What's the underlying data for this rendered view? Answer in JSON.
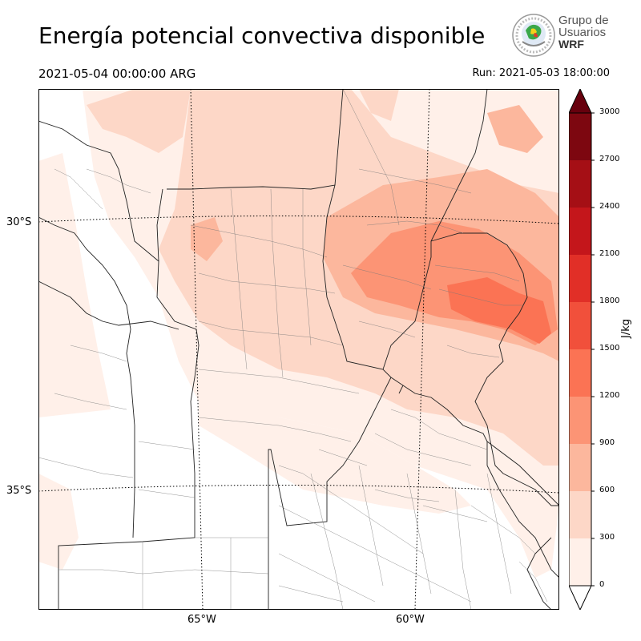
{
  "header": {
    "title": "Energía potencial convectiva disponible",
    "valid_time": "2021-05-04 00:00:00 ARG",
    "run_time": "Run: 2021-05-03 18:00:00"
  },
  "logo": {
    "line1": "Grupo de",
    "line2": "Usuarios",
    "line3": "WRF"
  },
  "map": {
    "lat_labels": [
      "30°S",
      "35°S"
    ],
    "lon_labels": [
      "65°W",
      "60°W"
    ]
  },
  "colorbar": {
    "unit": "J/kg",
    "ticks": [
      "0",
      "300",
      "600",
      "900",
      "1200",
      "1500",
      "1800",
      "2100",
      "2400",
      "2700",
      "3000"
    ],
    "colors": [
      "#fff0e9",
      "#fdd7c7",
      "#fcb79d",
      "#fc9475",
      "#fb7354",
      "#f1503b",
      "#e12f27",
      "#c4161b",
      "#a50f15",
      "#7d0710"
    ],
    "extend": "both"
  }
}
